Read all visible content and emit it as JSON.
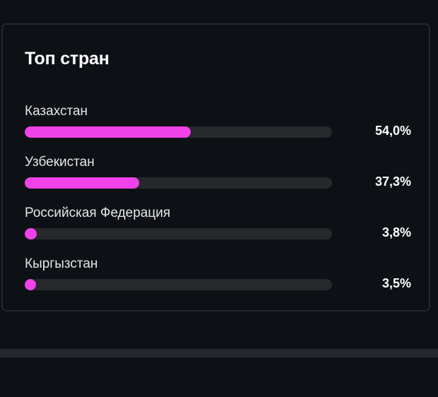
{
  "card": {
    "title": "Топ стран"
  },
  "countries": [
    {
      "name": "Казахстан",
      "value_label": "54,0%",
      "percent": 54.0
    },
    {
      "name": "Узбекистан",
      "value_label": "37,3%",
      "percent": 37.3
    },
    {
      "name": "Российская Федерация",
      "value_label": "3,8%",
      "percent": 3.8
    },
    {
      "name": "Кыргызстан",
      "value_label": "3,5%",
      "percent": 3.5
    }
  ],
  "colors": {
    "bar_fill": "#f042e8",
    "bar_track": "#26282c",
    "background": "#0d1015",
    "card_border": "#24272c"
  },
  "chart_data": {
    "type": "bar",
    "orientation": "horizontal",
    "title": "Топ стран",
    "categories": [
      "Казахстан",
      "Узбекистан",
      "Российская Федерация",
      "Кыргызстан"
    ],
    "values": [
      54.0,
      37.3,
      3.8,
      3.5
    ],
    "value_labels": [
      "54,0%",
      "37,3%",
      "3,8%",
      "3,5%"
    ],
    "unit": "%",
    "xlim": [
      0,
      100
    ],
    "grid": false,
    "legend": null
  }
}
